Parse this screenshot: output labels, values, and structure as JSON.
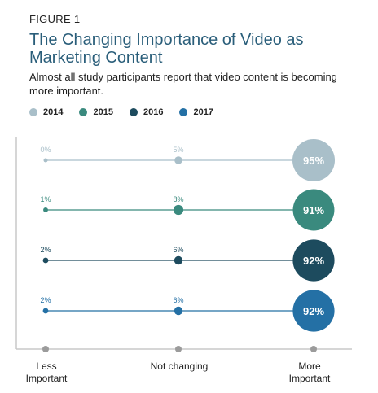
{
  "figure_label": "FIGURE 1",
  "title": "The Changing Importance of Video as Marketing Content",
  "subtitle": "Almost all study participants report that video content is becoming more important.",
  "colors": {
    "2014": "#a9bfc9",
    "2015": "#3a8a7e",
    "2016": "#1d4b5e",
    "2017": "#2470a5",
    "axis": "#c8c8c8",
    "axis_dot": "#9b9b9b"
  },
  "chart_data": {
    "type": "scatter",
    "categories": [
      "Less Important",
      "Not changing",
      "More Important"
    ],
    "series": [
      {
        "name": "2014",
        "values": [
          0,
          5,
          95
        ],
        "labels": [
          "0%",
          "5%",
          "95%"
        ]
      },
      {
        "name": "2015",
        "values": [
          1,
          8,
          91
        ],
        "labels": [
          "1%",
          "8%",
          "91%"
        ]
      },
      {
        "name": "2016",
        "values": [
          2,
          6,
          92
        ],
        "labels": [
          "2%",
          "6%",
          "92%"
        ]
      },
      {
        "name": "2017",
        "values": [
          2,
          6,
          92
        ],
        "labels": [
          "2%",
          "6%",
          "92%"
        ]
      }
    ],
    "legend_position": "top-left",
    "grid": false
  }
}
